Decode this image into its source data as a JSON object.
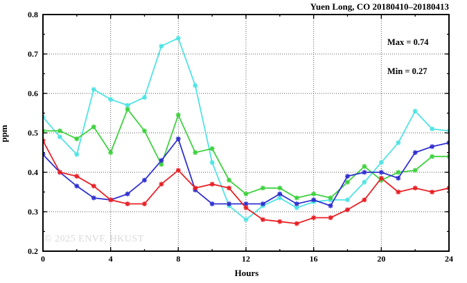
{
  "chart_data": {
    "type": "line",
    "title": "Yuen Long, CO 20180410–20180413",
    "xlabel": "Hours",
    "ylabel": "ppm",
    "xlim": [
      0,
      24
    ],
    "ylim": [
      0.2,
      0.8
    ],
    "xticks": [
      0,
      4,
      8,
      12,
      16,
      20,
      24
    ],
    "yticks": [
      0.2,
      0.3,
      0.4,
      0.5,
      0.6,
      0.7,
      0.8
    ],
    "x_minor_step": 2,
    "y_minor_step": 0.05,
    "grid": true,
    "legend": "none",
    "x": [
      0,
      1,
      2,
      3,
      4,
      5,
      6,
      7,
      8,
      9,
      10,
      11,
      12,
      13,
      14,
      15,
      16,
      17,
      18,
      19,
      20,
      21,
      22,
      23,
      24
    ],
    "series": [
      {
        "name": "cyan",
        "color": "#4fe3e3",
        "values": [
          0.54,
          0.49,
          0.445,
          0.61,
          0.585,
          0.57,
          0.59,
          0.72,
          0.74,
          0.62,
          0.425,
          0.315,
          0.28,
          0.315,
          0.335,
          0.31,
          0.325,
          0.33,
          0.33,
          0.375,
          0.425,
          0.475,
          0.555,
          0.51,
          0.505
        ]
      },
      {
        "name": "green",
        "color": "#3ed13e",
        "values": [
          0.505,
          0.505,
          0.485,
          0.515,
          0.45,
          0.56,
          0.505,
          0.42,
          0.545,
          0.45,
          0.46,
          0.38,
          0.345,
          0.36,
          0.36,
          0.335,
          0.345,
          0.335,
          0.375,
          0.415,
          0.38,
          0.4,
          0.405,
          0.44,
          0.44
        ]
      },
      {
        "name": "blue",
        "color": "#3030d0",
        "values": [
          0.445,
          0.4,
          0.365,
          0.335,
          0.33,
          0.345,
          0.38,
          0.43,
          0.485,
          0.355,
          0.32,
          0.32,
          0.32,
          0.32,
          0.345,
          0.32,
          0.33,
          0.315,
          0.39,
          0.4,
          0.4,
          0.385,
          0.45,
          0.465,
          0.475
        ]
      },
      {
        "name": "red",
        "color": "#e81f24",
        "values": [
          0.48,
          0.4,
          0.39,
          0.365,
          0.33,
          0.32,
          0.32,
          0.37,
          0.405,
          0.36,
          0.37,
          0.36,
          0.31,
          0.28,
          0.275,
          0.27,
          0.285,
          0.285,
          0.305,
          0.33,
          0.385,
          0.35,
          0.36,
          0.35,
          0.36
        ]
      }
    ],
    "annotations": {
      "max_label": "Max = 0.74",
      "min_label": "Min = 0.27"
    },
    "watermark": "© 2025 ENVF, HKUST"
  }
}
